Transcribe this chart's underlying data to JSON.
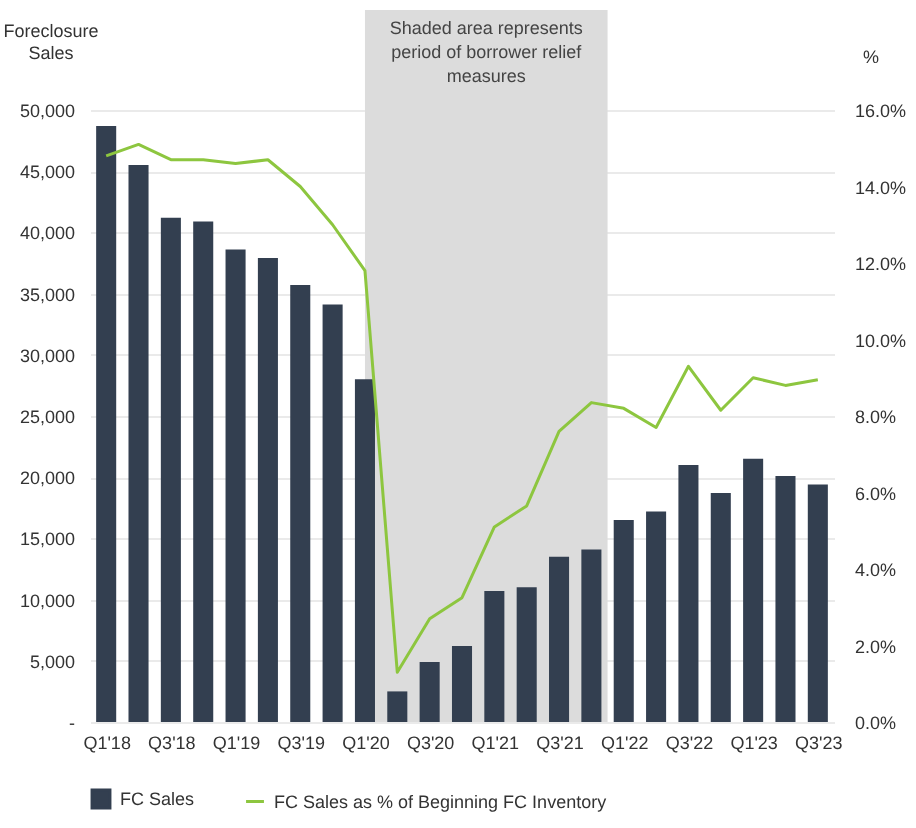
{
  "chart_data": {
    "type": "bar",
    "ylabel": "Foreclosure Sales",
    "y2label": "%",
    "categories": [
      "Q1'18",
      null,
      "Q3'18",
      null,
      "Q1'19",
      null,
      "Q3'19",
      null,
      "Q1'20",
      null,
      "Q3'20",
      null,
      "Q1'21",
      null,
      "Q3'21",
      null,
      "Q1'22",
      null,
      "Q3'22",
      null,
      "Q1'23",
      null,
      "Q3'23"
    ],
    "series": [
      {
        "name": "FC Sales",
        "color": "#333f50",
        "values": [
          48700,
          45500,
          41200,
          40900,
          38600,
          37900,
          35700,
          34100,
          28000,
          2500,
          4900,
          6200,
          10700,
          11000,
          13500,
          14100,
          16500,
          17200,
          21000,
          18700,
          21500,
          20100,
          19400
        ]
      },
      {
        "name": "FC Sales as % of Beginning FC Inventory",
        "type": "line",
        "axis": "y2",
        "color": "#8dc63f",
        "values": [
          14.8,
          15.1,
          14.7,
          14.7,
          14.6,
          14.7,
          14.0,
          13.0,
          11.8,
          1.3,
          2.7,
          3.25,
          5.1,
          5.65,
          7.6,
          8.35,
          8.2,
          7.7,
          9.3,
          8.15,
          9.0,
          8.8,
          8.95
        ]
      }
    ],
    "ylim": [
      0,
      50000
    ],
    "yticks": [
      {
        "value": 0,
        "label": "-"
      },
      {
        "value": 5000,
        "label": "5,000"
      },
      {
        "value": 10000,
        "label": "10,000"
      },
      {
        "value": 15000,
        "label": "15,000"
      },
      {
        "value": 20000,
        "label": "20,000"
      },
      {
        "value": 25000,
        "label": "25,000"
      },
      {
        "value": 30000,
        "label": "30,000"
      },
      {
        "value": 35000,
        "label": "35,000"
      },
      {
        "value": 40000,
        "label": "40,000"
      },
      {
        "value": 45000,
        "label": "45,000"
      },
      {
        "value": 50000,
        "label": "50,000"
      }
    ],
    "y2lim": [
      0,
      16
    ],
    "y2ticks": [
      {
        "value": 0,
        "label": "0.0%"
      },
      {
        "value": 2,
        "label": "2.0%"
      },
      {
        "value": 4,
        "label": "4.0%"
      },
      {
        "value": 6,
        "label": "6.0%"
      },
      {
        "value": 8,
        "label": "8.0%"
      },
      {
        "value": 10,
        "label": "10.0%"
      },
      {
        "value": 12,
        "label": "12.0%"
      },
      {
        "value": 14,
        "label": "14.0%"
      },
      {
        "value": 16,
        "label": "16.0%"
      }
    ],
    "bands": [
      {
        "axis": "x",
        "from": "Q1'20",
        "to": "Q1'22",
        "label": "Shaded area represents period of borrower relief measures",
        "color": "#dcdcdc"
      }
    ],
    "grid": "y",
    "legend": "bottom",
    "line_style": "solid"
  }
}
